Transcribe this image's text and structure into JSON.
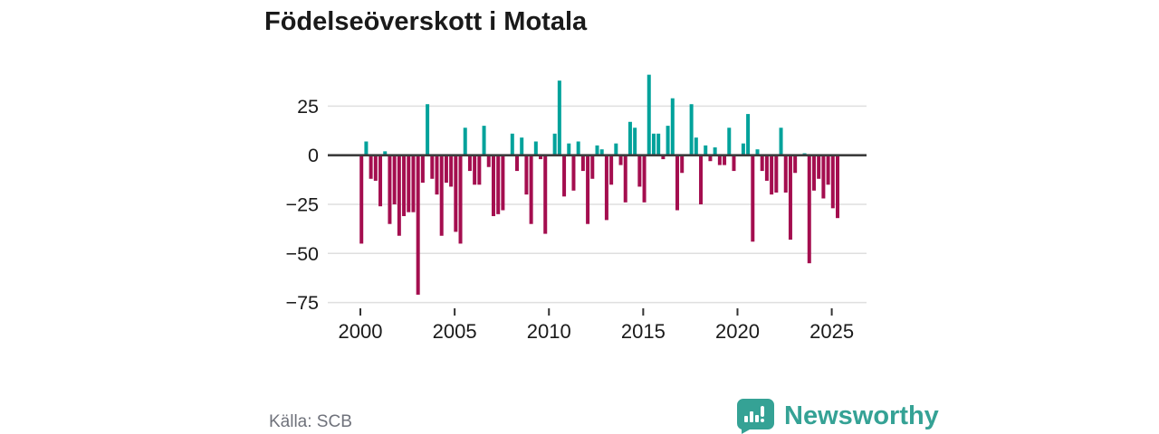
{
  "title": "Födelseöverskott i Motala",
  "source": "Källa: SCB",
  "branding": {
    "name": "Newsworthy",
    "logo_icon": "newsworthy-speech-bubble-bar-chart-icon"
  },
  "colors": {
    "positive_bar": "#00A29B",
    "negative_bar": "#A40E4F",
    "zero_axis": "#3C3C3C",
    "gridline": "#DFDFDF",
    "tick_mark": "#333333",
    "axis_text": "#1A1A1A",
    "title_text": "#1A1A1A",
    "source_text": "#6F727B",
    "brand_teal": "#35A295",
    "background": "#FFFFFF"
  },
  "chart_data": {
    "type": "bar",
    "title": "Födelseöverskott i Motala",
    "xlabel": "",
    "ylabel": "",
    "grid": true,
    "legend": "none",
    "ylim": [
      -80,
      45
    ],
    "yticks": [
      25,
      0,
      -25,
      -50,
      -75
    ],
    "ytick_labels": [
      "25",
      "0",
      "−25",
      "−50",
      "−75"
    ],
    "xticks": [
      2000,
      2005,
      2010,
      2015,
      2020,
      2025
    ],
    "xtick_labels": [
      "2000",
      "2005",
      "2010",
      "2015",
      "2020",
      "2025"
    ],
    "period_start": "2000 Q1",
    "period_end": "2025 Q2",
    "quarters": [
      "2000Q1",
      "2000Q2",
      "2000Q3",
      "2000Q4",
      "2001Q1",
      "2001Q2",
      "2001Q3",
      "2001Q4",
      "2002Q1",
      "2002Q2",
      "2002Q3",
      "2002Q4",
      "2003Q1",
      "2003Q2",
      "2003Q3",
      "2003Q4",
      "2004Q1",
      "2004Q2",
      "2004Q3",
      "2004Q4",
      "2005Q1",
      "2005Q2",
      "2005Q3",
      "2005Q4",
      "2006Q1",
      "2006Q2",
      "2006Q3",
      "2006Q4",
      "2007Q1",
      "2007Q2",
      "2007Q3",
      "2007Q4",
      "2008Q1",
      "2008Q2",
      "2008Q3",
      "2008Q4",
      "2009Q1",
      "2009Q2",
      "2009Q3",
      "2009Q4",
      "2010Q1",
      "2010Q2",
      "2010Q3",
      "2010Q4",
      "2011Q1",
      "2011Q2",
      "2011Q3",
      "2011Q4",
      "2012Q1",
      "2012Q2",
      "2012Q3",
      "2012Q4",
      "2013Q1",
      "2013Q2",
      "2013Q3",
      "2013Q4",
      "2014Q1",
      "2014Q2",
      "2014Q3",
      "2014Q4",
      "2015Q1",
      "2015Q2",
      "2015Q3",
      "2015Q4",
      "2016Q1",
      "2016Q2",
      "2016Q3",
      "2016Q4",
      "2017Q1",
      "2017Q2",
      "2017Q3",
      "2017Q4",
      "2018Q1",
      "2018Q2",
      "2018Q3",
      "2018Q4",
      "2019Q1",
      "2019Q2",
      "2019Q3",
      "2019Q4",
      "2020Q1",
      "2020Q2",
      "2020Q3",
      "2020Q4",
      "2021Q1",
      "2021Q2",
      "2021Q3",
      "2021Q4",
      "2022Q1",
      "2022Q2",
      "2022Q3",
      "2022Q4",
      "2023Q1",
      "2023Q2",
      "2023Q3",
      "2023Q4",
      "2024Q1",
      "2024Q2",
      "2024Q3",
      "2024Q4",
      "2025Q1",
      "2025Q2"
    ],
    "values": [
      -45,
      7,
      -12,
      -13,
      -26,
      2,
      -35,
      -25,
      -41,
      -31,
      -29,
      -29,
      -71,
      -14,
      26,
      -12,
      -20,
      -41,
      -14,
      -16,
      -39,
      -45,
      14,
      -8,
      -15,
      -15,
      15,
      -6,
      -31,
      -30,
      -28,
      0,
      11,
      -8,
      9,
      -20,
      -35,
      7,
      -2,
      -40,
      0,
      11,
      38,
      -21,
      6,
      -18,
      7,
      -8,
      -35,
      -12,
      5,
      3,
      -33,
      -15,
      6,
      -5,
      -24,
      17,
      14,
      -16,
      -24,
      41,
      11,
      11,
      -2,
      15,
      29,
      -28,
      -9,
      0,
      26,
      9,
      -25,
      5,
      -3,
      4,
      -5,
      -5,
      14,
      -8,
      0,
      6,
      21,
      -44,
      3,
      -8,
      -13,
      -20,
      -19,
      14,
      -19,
      -43,
      -9,
      0,
      1,
      -55,
      -18,
      -12,
      -22,
      -15,
      -27,
      -32
    ]
  }
}
